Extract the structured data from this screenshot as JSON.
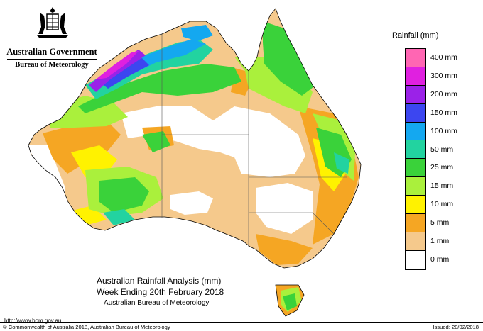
{
  "header": {
    "government": "Australian Government",
    "bureau": "Bureau of Meteorology",
    "crest_icon": "coat-of-arms-icon"
  },
  "legend": {
    "title": "Rainfall (mm)",
    "items": [
      {
        "label": "400 mm",
        "color": "#ff66b3"
      },
      {
        "label": "300 mm",
        "color": "#e020e0"
      },
      {
        "label": "200 mm",
        "color": "#9b22e8"
      },
      {
        "label": "150 mm",
        "color": "#3c46f0"
      },
      {
        "label": "100 mm",
        "color": "#14a8f0"
      },
      {
        "label": "50 mm",
        "color": "#22d3a0"
      },
      {
        "label": "25 mm",
        "color": "#3ad23a"
      },
      {
        "label": "15 mm",
        "color": "#aaf03c"
      },
      {
        "label": "10 mm",
        "color": "#fff200"
      },
      {
        "label": "5 mm",
        "color": "#f5a623"
      },
      {
        "label": "1 mm",
        "color": "#f5c98c"
      },
      {
        "label": "0 mm",
        "color": "#ffffff"
      }
    ]
  },
  "caption": {
    "line1": "Australian Rainfall Analysis (mm)",
    "line2": "Week Ending 20th February 2018",
    "line3": "Australian Bureau of Meteorology"
  },
  "footer": {
    "url": "http://www.bom.gov.au",
    "copyright": "© Commonwealth of Australia 2018, Australian Bureau of Meteorology",
    "issued": "Issued: 20/02/2018"
  }
}
